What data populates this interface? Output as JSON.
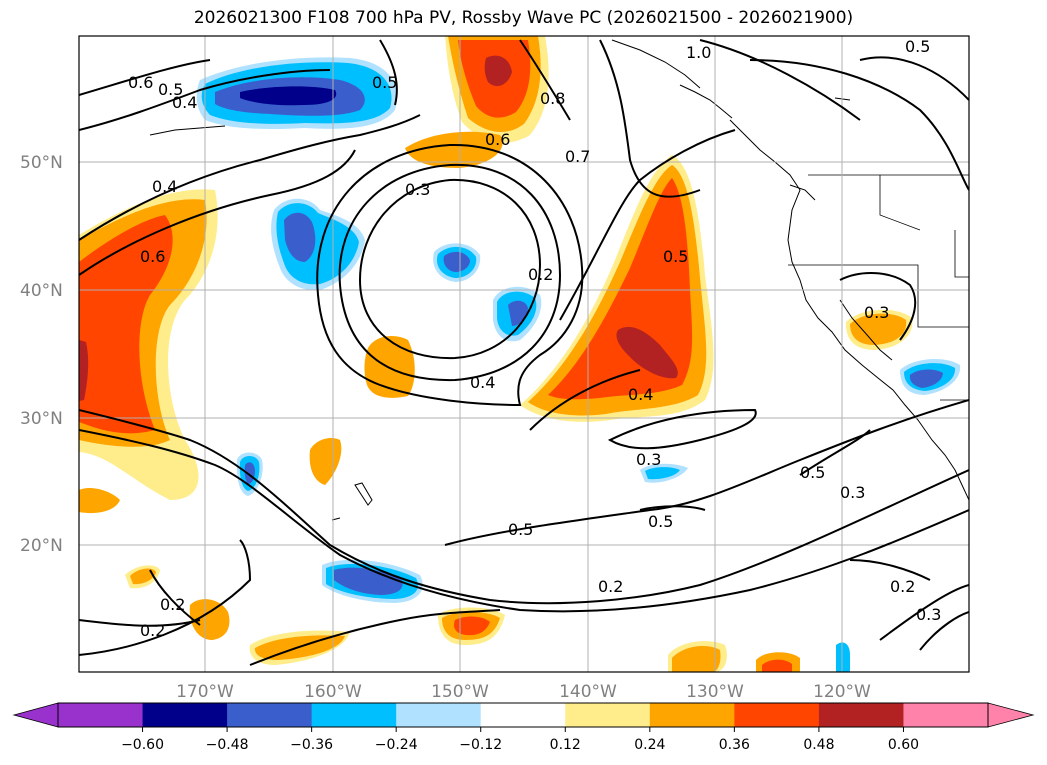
{
  "title": "2026021300 F108 700 hPa PV, Rossby Wave PC (2026021500 - 2026021900)",
  "map": {
    "lat_labels": [
      "50°N",
      "40°N",
      "30°N",
      "20°N"
    ],
    "lon_labels": [
      "170°W",
      "160°W",
      "150°W",
      "140°W",
      "130°W",
      "120°W"
    ],
    "contour_labels": [
      "0.6",
      "0.5",
      "0.4",
      "0.5",
      "1.0",
      "0.5",
      "0.8",
      "0.6",
      "0.7",
      "0.4",
      "0.3",
      "0.6",
      "0.2",
      "0.5",
      "0.3",
      "0.4",
      "0.4",
      "0.3",
      "0.5",
      "0.3",
      "0.5",
      "0.5",
      "0.2",
      "0.2",
      "0.2",
      "0.2",
      "0.3"
    ],
    "colors": {
      "neg_060": "#9932cc",
      "neg_048": "#00008b",
      "neg_036": "#3a5fcd",
      "neg_024": "#00bfff",
      "neg_012": "#b0e2ff",
      "neutral": "#ffffff",
      "pos_012": "#ffec8b",
      "pos_024": "#ffa500",
      "pos_036": "#ff4500",
      "pos_048": "#b22222",
      "pos_060": "#ff82ab"
    }
  },
  "colorbar": {
    "ticks": [
      "−0.60",
      "−0.48",
      "−0.36",
      "−0.24",
      "−0.12",
      "0.12",
      "0.24",
      "0.36",
      "0.48",
      "0.60"
    ],
    "bins": [
      "#9932cc",
      "#00008b",
      "#3a5fcd",
      "#00bfff",
      "#b0e2ff",
      "#ffffff",
      "#ffec8b",
      "#ffa500",
      "#ff4500",
      "#b22222",
      "#ff82ab"
    ]
  }
}
